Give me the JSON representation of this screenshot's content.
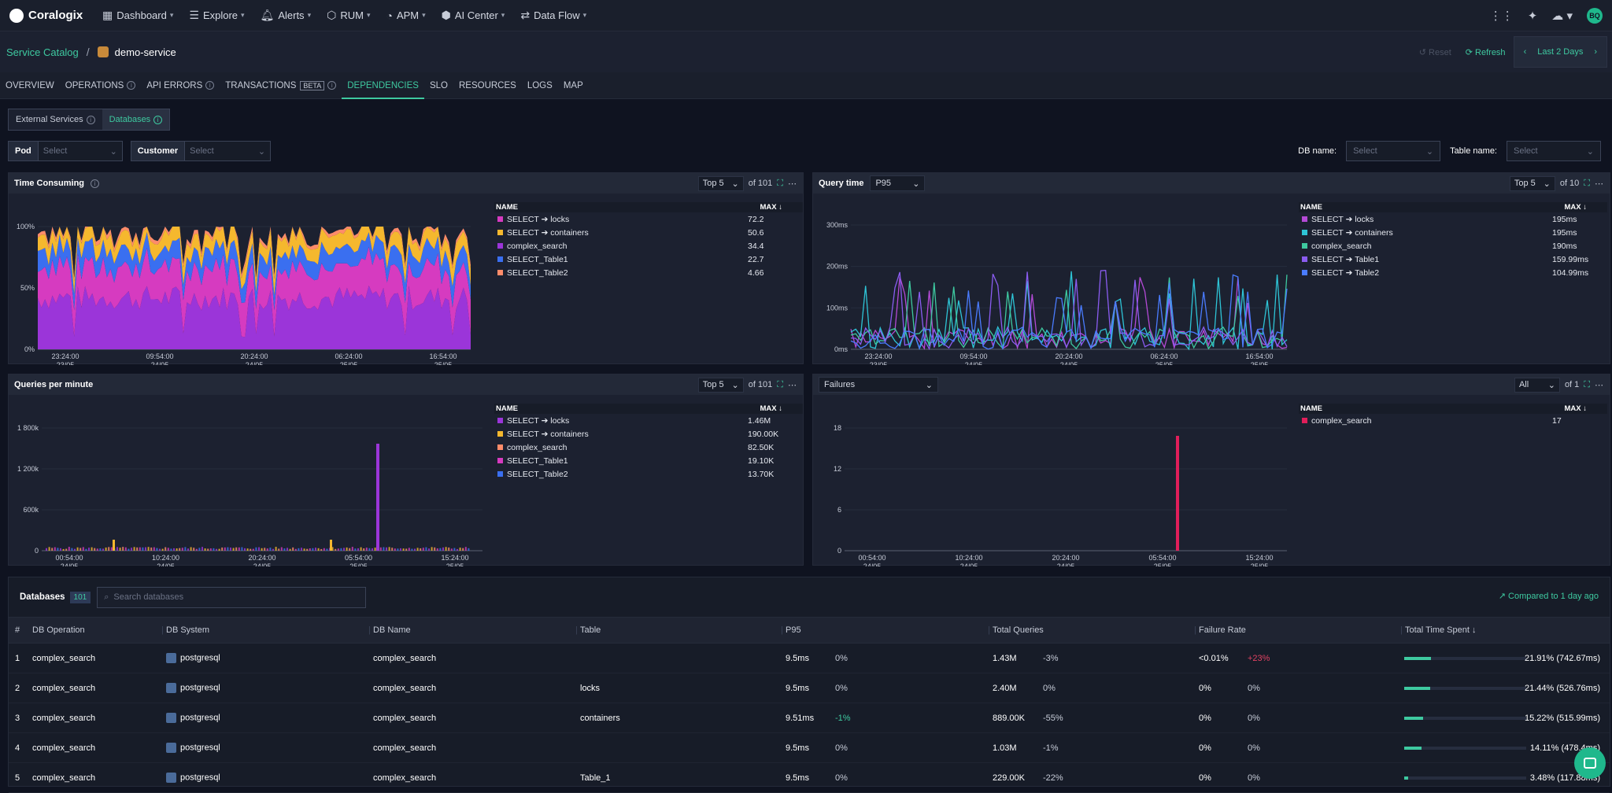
{
  "topbar": {
    "brand": "Coralogix",
    "nav": [
      {
        "icon": "▦",
        "label": "Dashboard"
      },
      {
        "icon": "☰",
        "label": "Explore"
      },
      {
        "icon": "🔔︎",
        "label": "Alerts"
      },
      {
        "icon": "⬡",
        "label": "RUM"
      },
      {
        "icon": "◔",
        "label": "APM"
      },
      {
        "icon": "⬢",
        "label": "AI Center"
      },
      {
        "icon": "⇄",
        "label": "Data Flow"
      }
    ],
    "avatar": "BQ"
  },
  "subheader": {
    "breadcrumb_root": "Service Catalog",
    "separator": "/",
    "service": "demo-service",
    "reset": "↺ Reset",
    "refresh": "⟳ Refresh",
    "timerange": "Last 2 Days"
  },
  "tabs": [
    "OVERVIEW",
    "OPERATIONS",
    "API ERRORS",
    "TRANSACTIONS",
    "DEPENDENCIES",
    "SLO",
    "RESOURCES",
    "LOGS",
    "MAP"
  ],
  "beta": "BETA",
  "seg": {
    "external": "External Services",
    "databases": "Databases"
  },
  "filters": {
    "pod": "Pod",
    "customer": "Customer",
    "placeholder": "Select",
    "db_name": "DB name:",
    "table_name": "Table name:"
  },
  "panels": {
    "time": {
      "title": "Time Consuming",
      "top": "Top 5",
      "of": "of 101",
      "name": "NAME",
      "max": "MAX ↓",
      "legend": [
        {
          "name": "SELECT ➔ locks",
          "v": "72.2",
          "c": "#d63bc0"
        },
        {
          "name": "SELECT ➔ containers",
          "v": "50.6",
          "c": "#f5b82e"
        },
        {
          "name": "complex_search",
          "v": "34.4",
          "c": "#9b35d9"
        },
        {
          "name": "SELECT_Table1",
          "v": "22.7",
          "c": "#3a6ff0"
        },
        {
          "name": "SELECT_Table2",
          "v": "4.66",
          "c": "#ff8c6a"
        }
      ],
      "yt": [
        "100%",
        "50%",
        "0%"
      ],
      "xt": [
        [
          "23:24:00",
          "23/05"
        ],
        [
          "09:54:00",
          "24/05"
        ],
        [
          "20:24:00",
          "24/05"
        ],
        [
          "06:24:00",
          "25/05"
        ],
        [
          "16:54:00",
          "25/05"
        ]
      ]
    },
    "query": {
      "title": "Query time",
      "agg": "P95",
      "top": "Top 5",
      "of": "of 10",
      "name": "NAME",
      "max": "MAX ↓",
      "legend": [
        {
          "name": "SELECT ➔ locks",
          "v": "195ms",
          "c": "#b44ad6"
        },
        {
          "name": "SELECT ➔ containers",
          "v": "195ms",
          "c": "#2ec4d6"
        },
        {
          "name": "complex_search",
          "v": "190ms",
          "c": "#3ec9a0"
        },
        {
          "name": "SELECT ➔ Table1",
          "v": "159.99ms",
          "c": "#8a5cf0"
        },
        {
          "name": "SELECT ➔ Table2",
          "v": "104.99ms",
          "c": "#4a7cff"
        }
      ],
      "yt": [
        "300ms",
        "200ms",
        "100ms",
        "0ms"
      ],
      "xt": [
        [
          "23:24:00",
          "23/05"
        ],
        [
          "09:54:00",
          "24/05"
        ],
        [
          "20:24:00",
          "24/05"
        ],
        [
          "06:24:00",
          "25/05"
        ],
        [
          "16:54:00",
          "25/05"
        ]
      ]
    },
    "qpm": {
      "title": "Queries per minute",
      "top": "Top 5",
      "of": "of 101",
      "name": "NAME",
      "max": "MAX ↓",
      "legend": [
        {
          "name": "SELECT ➔ locks",
          "v": "1.46M",
          "c": "#9b35d9"
        },
        {
          "name": "SELECT ➔ containers",
          "v": "190.00K",
          "c": "#f5b82e"
        },
        {
          "name": "complex_search",
          "v": "82.50K",
          "c": "#ff8c6a"
        },
        {
          "name": "SELECT_Table1",
          "v": "19.10K",
          "c": "#d63bc0"
        },
        {
          "name": "SELECT_Table2",
          "v": "13.70K",
          "c": "#3a6ff0"
        }
      ],
      "yt": [
        "1 800k",
        "1 200k",
        "600k",
        "0"
      ],
      "xt": [
        [
          "00:54:00",
          "24/05"
        ],
        [
          "10:24:00",
          "24/05"
        ],
        [
          "20:24:00",
          "24/05"
        ],
        [
          "05:54:00",
          "25/05"
        ],
        [
          "15:24:00",
          "25/05"
        ]
      ]
    },
    "fail": {
      "title": "Failures",
      "top": "All",
      "of": "of 1",
      "name": "NAME",
      "max": "MAX ↓",
      "legend": [
        {
          "name": "complex_search",
          "v": "17",
          "c": "#e01e5a"
        }
      ],
      "yt": [
        "18",
        "12",
        "6",
        "0"
      ],
      "xt": [
        [
          "00:54:00",
          "24/05"
        ],
        [
          "10:24:00",
          "24/05"
        ],
        [
          "20:24:00",
          "24/05"
        ],
        [
          "05:54:00",
          "25/05"
        ],
        [
          "15:24:00",
          "25/05"
        ]
      ]
    }
  },
  "db": {
    "title": "Databases",
    "count": "101",
    "search_placeholder": "Search databases",
    "compared": "↗ Compared to 1 day ago",
    "headers": [
      "#",
      "DB Operation",
      "DB System",
      "DB Name",
      "Table",
      "P95",
      "Total Queries",
      "Failure Rate",
      "Total Time Spent ↓"
    ],
    "rows": [
      {
        "n": "1",
        "op": "complex_search",
        "sys": "postgresql",
        "name": "complex_search",
        "table": "",
        "p95": "9.5ms",
        "p95d": "0%",
        "q": "1.43M",
        "qd": "-3%",
        "fr": "<0.01%",
        "frd": "+23%",
        "tt": "21.91% (742.67ms)",
        "pct": 0.2191
      },
      {
        "n": "2",
        "op": "complex_search",
        "sys": "postgresql",
        "name": "complex_search",
        "table": "locks",
        "p95": "9.5ms",
        "p95d": "0%",
        "q": "2.40M",
        "qd": "0%",
        "fr": "0%",
        "frd": "0%",
        "tt": "21.44% (526.76ms)",
        "pct": 0.2144
      },
      {
        "n": "3",
        "op": "complex_search",
        "sys": "postgresql",
        "name": "complex_search",
        "table": "containers",
        "p95": "9.51ms",
        "p95d": "-1%",
        "q": "889.00K",
        "qd": "-55%",
        "fr": "0%",
        "frd": "0%",
        "tt": "15.22% (515.99ms)",
        "pct": 0.1522
      },
      {
        "n": "4",
        "op": "complex_search",
        "sys": "postgresql",
        "name": "complex_search",
        "table": "",
        "p95": "9.5ms",
        "p95d": "0%",
        "q": "1.03M",
        "qd": "-1%",
        "fr": "0%",
        "frd": "0%",
        "tt": "14.11% (478.4ms)",
        "pct": 0.1411
      },
      {
        "n": "5",
        "op": "complex_search",
        "sys": "postgresql",
        "name": "complex_search",
        "table": "Table_1",
        "p95": "9.5ms",
        "p95d": "0%",
        "q": "229.00K",
        "qd": "-22%",
        "fr": "0%",
        "frd": "0%",
        "tt": "3.48% (117.88ms)",
        "pct": 0.0348
      }
    ]
  }
}
